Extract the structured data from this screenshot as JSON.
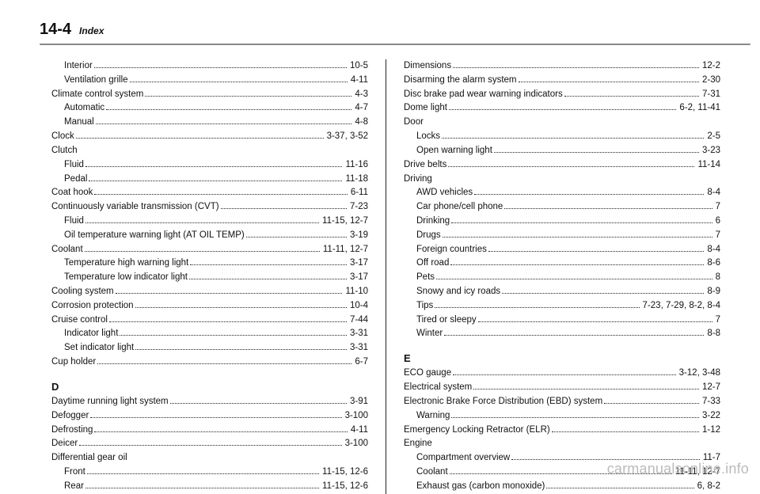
{
  "header": {
    "page_number": "14-4",
    "section": "Index"
  },
  "watermark": "carmanualsonline.info",
  "left": [
    {
      "label": "Interior",
      "page": "10-5",
      "indent": 1
    },
    {
      "label": "Ventilation grille",
      "page": "4-11",
      "indent": 1
    },
    {
      "label": "Climate control system",
      "page": "4-3",
      "indent": 0
    },
    {
      "label": "Automatic",
      "page": "4-7",
      "indent": 1
    },
    {
      "label": "Manual",
      "page": "4-8",
      "indent": 1
    },
    {
      "label": "Clock",
      "page": "3-37, 3-52",
      "indent": 0
    },
    {
      "label": "Clutch",
      "page": "",
      "indent": 0
    },
    {
      "label": "Fluid",
      "page": "11-16",
      "indent": 1
    },
    {
      "label": "Pedal",
      "page": "11-18",
      "indent": 1
    },
    {
      "label": "Coat hook",
      "page": "6-11",
      "indent": 0
    },
    {
      "label": "Continuously variable transmission (CVT)",
      "page": "7-23",
      "indent": 0
    },
    {
      "label": "Fluid",
      "page": "11-15, 12-7",
      "indent": 1
    },
    {
      "label": "Oil temperature warning light (AT OIL TEMP)",
      "page": "3-19",
      "indent": 1
    },
    {
      "label": "Coolant",
      "page": "11-11, 12-7",
      "indent": 0
    },
    {
      "label": "Temperature high warning light",
      "page": "3-17",
      "indent": 1
    },
    {
      "label": "Temperature low indicator light",
      "page": "3-17",
      "indent": 1
    },
    {
      "label": "Cooling system",
      "page": "11-10",
      "indent": 0
    },
    {
      "label": "Corrosion protection",
      "page": "10-4",
      "indent": 0
    },
    {
      "label": "Cruise control",
      "page": "7-44",
      "indent": 0
    },
    {
      "label": "Indicator light",
      "page": "3-31",
      "indent": 1
    },
    {
      "label": "Set indicator light",
      "page": "3-31",
      "indent": 1
    },
    {
      "label": "Cup holder",
      "page": "6-7",
      "indent": 0
    },
    {
      "letter": "D"
    },
    {
      "label": "Daytime running light system",
      "page": "3-91",
      "indent": 0
    },
    {
      "label": "Defogger",
      "page": "3-100",
      "indent": 0
    },
    {
      "label": "Defrosting",
      "page": "4-11",
      "indent": 0
    },
    {
      "label": "Deicer",
      "page": "3-100",
      "indent": 0
    },
    {
      "label": "Differential gear oil",
      "page": "",
      "indent": 0
    },
    {
      "label": "Front",
      "page": "11-15, 12-6",
      "indent": 1
    },
    {
      "label": "Rear",
      "page": "11-15, 12-6",
      "indent": 1
    }
  ],
  "right": [
    {
      "label": "Dimensions",
      "page": "12-2",
      "indent": 0
    },
    {
      "label": "Disarming the alarm system",
      "page": "2-30",
      "indent": 0
    },
    {
      "label": "Disc brake pad wear warning indicators",
      "page": "7-31",
      "indent": 0
    },
    {
      "label": "Dome light",
      "page": "6-2, 11-41",
      "indent": 0
    },
    {
      "label": "Door",
      "page": "",
      "indent": 0
    },
    {
      "label": "Locks",
      "page": "2-5",
      "indent": 1
    },
    {
      "label": "Open warning light",
      "page": "3-23",
      "indent": 1
    },
    {
      "label": "Drive belts",
      "page": "11-14",
      "indent": 0
    },
    {
      "label": "Driving",
      "page": "",
      "indent": 0
    },
    {
      "label": "AWD vehicles",
      "page": "8-4",
      "indent": 1
    },
    {
      "label": "Car phone/cell phone",
      "page": "7",
      "indent": 1
    },
    {
      "label": "Drinking",
      "page": "6",
      "indent": 1
    },
    {
      "label": "Drugs",
      "page": "7",
      "indent": 1
    },
    {
      "label": "Foreign countries",
      "page": "8-4",
      "indent": 1
    },
    {
      "label": "Off road",
      "page": "8-6",
      "indent": 1
    },
    {
      "label": "Pets",
      "page": "8",
      "indent": 1
    },
    {
      "label": "Snowy and icy roads",
      "page": "8-9",
      "indent": 1
    },
    {
      "label": "Tips",
      "page": "7-23, 7-29, 8-2, 8-4",
      "indent": 1
    },
    {
      "label": "Tired or sleepy",
      "page": "7",
      "indent": 1
    },
    {
      "label": "Winter",
      "page": "8-8",
      "indent": 1
    },
    {
      "letter": "E"
    },
    {
      "label": "ECO gauge",
      "page": "3-12, 3-48",
      "indent": 0
    },
    {
      "label": "Electrical system",
      "page": "12-7",
      "indent": 0
    },
    {
      "label": "Electronic Brake Force Distribution (EBD) system",
      "page": "7-33",
      "indent": 0
    },
    {
      "label": "Warning",
      "page": "3-22",
      "indent": 1
    },
    {
      "label": "Emergency Locking Retractor (ELR)",
      "page": "1-12",
      "indent": 0
    },
    {
      "label": "Engine",
      "page": "",
      "indent": 0
    },
    {
      "label": "Compartment overview",
      "page": "11-7",
      "indent": 1
    },
    {
      "label": "Coolant",
      "page": "11-11, 12-7",
      "indent": 1
    },
    {
      "label": "Exhaust gas (carbon monoxide)",
      "page": "6, 8-2",
      "indent": 1
    }
  ]
}
